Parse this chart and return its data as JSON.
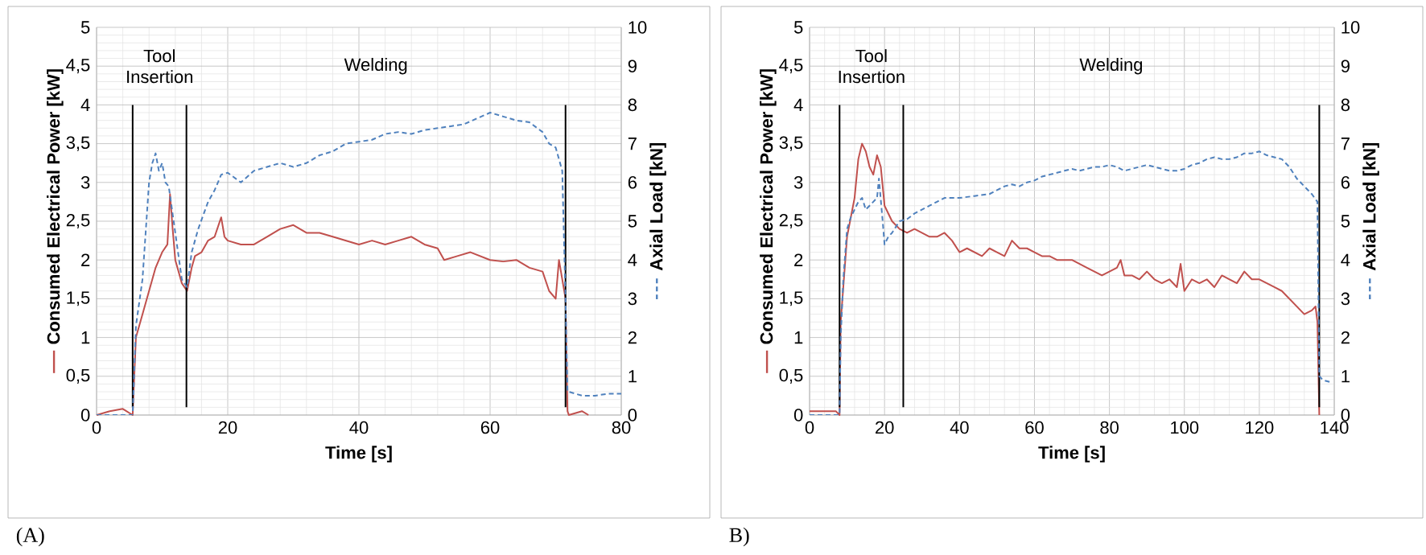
{
  "chart_data": [
    {
      "type": "line",
      "xlabel": "Time [s]",
      "ylabel": "Consumed Electrical Power [kW]",
      "y2label": "Axial Load [kN]",
      "xlim": [
        0,
        80
      ],
      "xticks": [
        0,
        20,
        40,
        60,
        80
      ],
      "ylim": [
        0,
        5
      ],
      "yticks": [
        0,
        {
          "value": 0.5,
          "label": "0,5"
        },
        1,
        {
          "value": 1.5,
          "label": "1,5"
        },
        2,
        {
          "value": 2.5,
          "label": "2,5"
        },
        3,
        {
          "value": 3.5,
          "label": "3,5"
        },
        4,
        {
          "value": 4.5,
          "label": "4,5"
        },
        5
      ],
      "y2lim": [
        0,
        10
      ],
      "y2ticks": [
        0,
        1,
        2,
        3,
        4,
        5,
        6,
        7,
        8,
        9,
        10
      ],
      "grid": true,
      "series": [
        {
          "color": "#c0504d",
          "line_style": "solid",
          "x": [
            0,
            2,
            4,
            5.5,
            6,
            7,
            8,
            9,
            10,
            10.8,
            11.2,
            11.6,
            12,
            13,
            13.8,
            14.5,
            15,
            16,
            17,
            18,
            19,
            19.5,
            20,
            22,
            24,
            26,
            28,
            30,
            32,
            34,
            36,
            38,
            40,
            42,
            44,
            46,
            48,
            50,
            52,
            53,
            55,
            57,
            60,
            62,
            64,
            66,
            68,
            69,
            70,
            70.5,
            71.5,
            71.8,
            72,
            74,
            75
          ],
          "values": [
            0,
            0.05,
            0.08,
            0,
            1.0,
            1.3,
            1.6,
            1.9,
            2.1,
            2.2,
            2.85,
            2.4,
            2.0,
            1.7,
            1.6,
            1.9,
            2.05,
            2.1,
            2.25,
            2.3,
            2.55,
            2.3,
            2.25,
            2.2,
            2.2,
            2.3,
            2.4,
            2.45,
            2.35,
            2.35,
            2.3,
            2.25,
            2.2,
            2.25,
            2.2,
            2.25,
            2.3,
            2.2,
            2.15,
            2.0,
            2.05,
            2.1,
            2.0,
            1.98,
            2.0,
            1.9,
            1.85,
            1.6,
            1.5,
            2.0,
            1.5,
            0.05,
            0,
            0.05,
            0
          ]
        },
        {
          "color": "#4f81bd",
          "line_style": "dashed",
          "axis": "y2",
          "x": [
            0,
            5.5,
            6,
            7,
            8,
            8.5,
            9,
            9.5,
            10,
            10.5,
            11,
            12,
            13,
            13.8,
            14.5,
            15.5,
            17,
            18,
            19,
            20,
            22,
            24,
            26,
            28,
            30,
            32,
            34,
            36,
            38,
            40,
            42,
            44,
            46,
            48,
            50,
            52,
            54,
            56,
            58,
            60,
            62,
            64,
            66,
            68,
            69,
            70,
            71,
            71.5,
            71.8,
            72,
            74,
            76,
            78,
            80
          ],
          "values": [
            0,
            0,
            2.3,
            3.5,
            6.0,
            6.5,
            6.75,
            6.3,
            6.5,
            6.0,
            5.9,
            4.7,
            3.5,
            3.3,
            4.2,
            4.8,
            5.5,
            5.8,
            6.2,
            6.25,
            6.0,
            6.3,
            6.4,
            6.5,
            6.4,
            6.5,
            6.7,
            6.8,
            7.0,
            7.05,
            7.1,
            7.25,
            7.3,
            7.25,
            7.35,
            7.4,
            7.45,
            7.5,
            7.65,
            7.8,
            7.7,
            7.6,
            7.55,
            7.3,
            7.0,
            6.9,
            6.3,
            3.0,
            0.6,
            0.6,
            0.5,
            0.5,
            0.55,
            0.55
          ]
        }
      ],
      "ref_lines": [
        {
          "axis": "x",
          "value": 5.5,
          "color": "#000000"
        },
        {
          "axis": "x",
          "value": 13.7,
          "color": "#000000"
        },
        {
          "axis": "x",
          "value": 71.5,
          "color": "#000000"
        }
      ],
      "annotations": [
        "Tool Insertion",
        "Welding",
        "(A)"
      ]
    },
    {
      "type": "line",
      "xlabel": "Time [s]",
      "ylabel": "Consumed Electrical Power [kW]",
      "y2label": "Axial Load [kN]",
      "xlim": [
        0,
        140
      ],
      "xticks": [
        0,
        20,
        40,
        60,
        80,
        100,
        120,
        140
      ],
      "ylim": [
        0,
        5
      ],
      "yticks": [
        0,
        {
          "value": 0.5,
          "label": "0,5"
        },
        1,
        {
          "value": 1.5,
          "label": "1,5"
        },
        2,
        {
          "value": 2.5,
          "label": "2,5"
        },
        3,
        {
          "value": 3.5,
          "label": "3,5"
        },
        4,
        {
          "value": 4.5,
          "label": "4,5"
        },
        5
      ],
      "y2lim": [
        0,
        10
      ],
      "y2ticks": [
        0,
        1,
        2,
        3,
        4,
        5,
        6,
        7,
        8,
        9,
        10
      ],
      "grid": true,
      "series": [
        {
          "color": "#c0504d",
          "line_style": "solid",
          "x": [
            0,
            4,
            7,
            8,
            8.3,
            10,
            12,
            13,
            14,
            15,
            16,
            17,
            18,
            19,
            20,
            22,
            24,
            26,
            28,
            30,
            32,
            34,
            36,
            38,
            40,
            42,
            44,
            46,
            48,
            50,
            52,
            54,
            56,
            58,
            60,
            62,
            64,
            66,
            68,
            70,
            72,
            74,
            76,
            78,
            80,
            82,
            83,
            84,
            86,
            88,
            90,
            92,
            94,
            96,
            98,
            99,
            100,
            102,
            104,
            106,
            108,
            110,
            112,
            114,
            116,
            118,
            120,
            122,
            124,
            126,
            128,
            130,
            132,
            134,
            135,
            135.5,
            136
          ],
          "values": [
            0.05,
            0.05,
            0.05,
            0,
            1.2,
            2.3,
            2.8,
            3.3,
            3.5,
            3.4,
            3.2,
            3.1,
            3.35,
            3.2,
            2.7,
            2.5,
            2.4,
            2.35,
            2.4,
            2.35,
            2.3,
            2.3,
            2.35,
            2.25,
            2.1,
            2.15,
            2.1,
            2.05,
            2.15,
            2.1,
            2.05,
            2.25,
            2.15,
            2.15,
            2.1,
            2.05,
            2.05,
            2.0,
            2.0,
            2.0,
            1.95,
            1.9,
            1.85,
            1.8,
            1.85,
            1.9,
            2.0,
            1.8,
            1.8,
            1.75,
            1.85,
            1.75,
            1.7,
            1.75,
            1.65,
            1.95,
            1.6,
            1.75,
            1.7,
            1.75,
            1.65,
            1.8,
            1.75,
            1.7,
            1.85,
            1.75,
            1.75,
            1.7,
            1.65,
            1.6,
            1.5,
            1.4,
            1.3,
            1.35,
            1.4,
            1.2,
            0
          ]
        },
        {
          "color": "#4f81bd",
          "line_style": "dashed",
          "axis": "y2",
          "x": [
            0,
            7,
            8,
            8.3,
            9,
            10,
            11,
            12,
            13,
            14,
            15,
            16,
            17,
            18,
            18.5,
            19.5,
            20,
            21,
            22,
            24,
            26,
            28,
            30,
            32,
            34,
            36,
            40,
            44,
            48,
            50,
            52,
            54,
            56,
            58,
            60,
            62,
            64,
            66,
            68,
            70,
            72,
            74,
            76,
            78,
            80,
            82,
            84,
            86,
            88,
            90,
            92,
            94,
            96,
            98,
            100,
            102,
            104,
            106,
            108,
            110,
            112,
            114,
            116,
            118,
            120,
            122,
            124,
            126,
            128,
            130,
            132,
            134,
            135.5,
            136,
            137,
            139
          ],
          "values": [
            0,
            0,
            0,
            2.0,
            3.5,
            4.8,
            5.1,
            5.3,
            5.5,
            5.6,
            5.3,
            5.4,
            5.5,
            5.6,
            6.1,
            5.0,
            4.4,
            4.6,
            4.7,
            5.0,
            5.05,
            5.2,
            5.3,
            5.4,
            5.5,
            5.6,
            5.6,
            5.65,
            5.7,
            5.8,
            5.9,
            5.95,
            5.9,
            6.0,
            6.05,
            6.15,
            6.2,
            6.25,
            6.3,
            6.35,
            6.3,
            6.35,
            6.4,
            6.4,
            6.45,
            6.4,
            6.3,
            6.35,
            6.4,
            6.45,
            6.4,
            6.35,
            6.3,
            6.3,
            6.35,
            6.45,
            6.5,
            6.6,
            6.65,
            6.6,
            6.6,
            6.65,
            6.75,
            6.75,
            6.8,
            6.7,
            6.65,
            6.6,
            6.4,
            6.1,
            5.9,
            5.7,
            5.5,
            1.0,
            0.9,
            0.85
          ]
        }
      ],
      "ref_lines": [
        {
          "axis": "x",
          "value": 8,
          "color": "#000000"
        },
        {
          "axis": "x",
          "value": 25,
          "color": "#000000"
        },
        {
          "axis": "x",
          "value": 136,
          "color": "#000000"
        }
      ],
      "annotations": [
        "Tool Insertion",
        "Welding",
        "B)"
      ]
    }
  ]
}
